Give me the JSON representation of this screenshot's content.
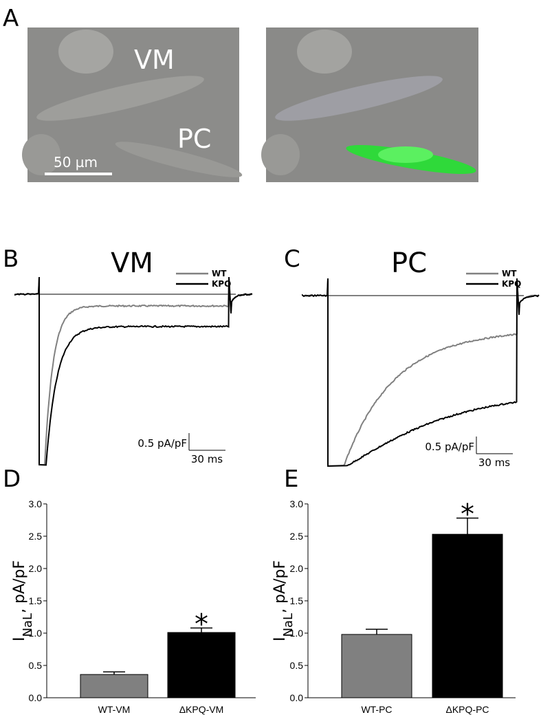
{
  "panel_a": {
    "label": "A",
    "cell_labels": [
      "VM",
      "PC"
    ],
    "scale_bar": "50 µm"
  },
  "panel_b": {
    "label": "B",
    "title": "VM",
    "legend": [
      "WT",
      "KPQ"
    ],
    "scale_y": "0.5 pA/pF",
    "scale_x": "30 ms"
  },
  "panel_c": {
    "label": "C",
    "title": "PC",
    "legend": [
      "WT",
      "KPQ"
    ],
    "scale_y": "0.5 pA/pF",
    "scale_x": "30 ms"
  },
  "chart_data": [
    {
      "type": "bar",
      "label": "D",
      "ylabel": {
        "main": "I",
        "sub": "NaL",
        "rest": ", pA/pF"
      },
      "categories": [
        "WT-VM",
        "ΔKPQ-VM"
      ],
      "values": [
        0.36,
        1.01
      ],
      "errors": [
        0.04,
        0.07
      ],
      "colors": [
        "#808080",
        "#000000"
      ],
      "annotation": "*",
      "ylim": [
        0,
        3
      ],
      "yticks": [
        {
          "value": 0,
          "label": "0.0"
        },
        0.5,
        {
          "value": 1,
          "label": "1.0"
        },
        1.5,
        {
          "value": 2,
          "label": "2.0"
        },
        2.5,
        {
          "value": 3,
          "label": "3.0"
        }
      ]
    },
    {
      "type": "bar",
      "label": "E",
      "ylabel": {
        "main": "I",
        "sub": "NaL",
        "rest": ", pA/pF"
      },
      "categories": [
        "WT-PC",
        "ΔKPQ-PC"
      ],
      "values": [
        0.98,
        2.53
      ],
      "errors": [
        0.08,
        0.25
      ],
      "colors": [
        "#808080",
        "#000000"
      ],
      "annotation": "*",
      "ylim": [
        0,
        3
      ],
      "yticks": [
        {
          "value": 0,
          "label": "0.0"
        },
        0.5,
        {
          "value": 1,
          "label": "1.0"
        },
        1.5,
        {
          "value": 2,
          "label": "2.0"
        },
        2.5,
        {
          "value": 3,
          "label": "3.0"
        }
      ]
    }
  ]
}
